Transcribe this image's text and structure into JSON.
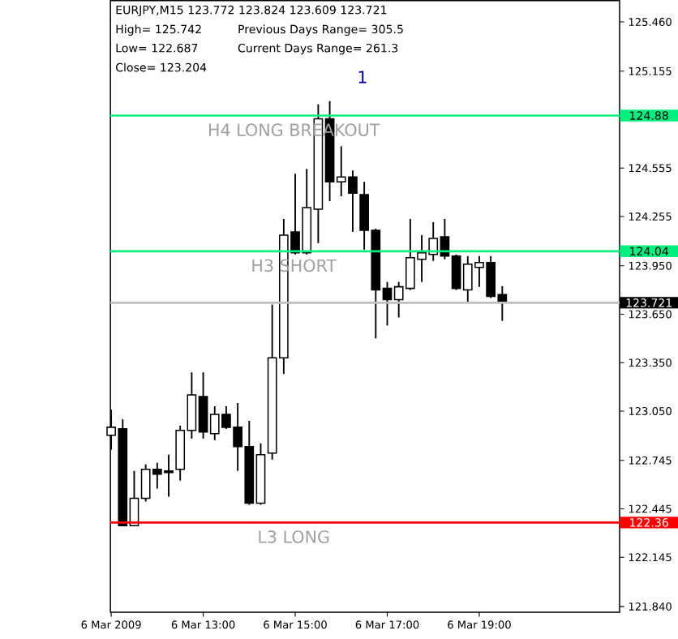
{
  "chart_data": {
    "type": "candlestick",
    "title": "EURJPY,M15  123.772 123.824 123.609 123.721",
    "annotations": [
      "High= 125.742",
      "Previous Days Range= 305.5",
      "Low= 122.687",
      "Current Days Range= 261.3",
      "Close= 123.204",
      "1",
      "124.88",
      "124.04",
      "123.721",
      "122.36"
    ],
    "x": [
      "2009-03-06T11:00",
      "2009-03-06T11:15",
      "2009-03-06T11:30",
      "2009-03-06T11:45",
      "2009-03-06T12:00",
      "2009-03-06T12:15",
      "2009-03-06T12:30",
      "2009-03-06T12:45",
      "2009-03-06T13:00",
      "2009-03-06T13:15",
      "2009-03-06T13:30",
      "2009-03-06T13:45",
      "2009-03-06T14:00",
      "2009-03-06T14:15",
      "2009-03-06T14:30",
      "2009-03-06T14:45",
      "2009-03-06T15:00",
      "2009-03-06T15:15",
      "2009-03-06T15:30",
      "2009-03-06T15:45",
      "2009-03-06T16:00",
      "2009-03-06T16:15",
      "2009-03-06T16:30",
      "2009-03-06T16:45",
      "2009-03-06T17:00",
      "2009-03-06T17:15",
      "2009-03-06T17:30",
      "2009-03-06T17:45",
      "2009-03-06T18:00",
      "2009-03-06T18:15",
      "2009-03-06T18:30",
      "2009-03-06T18:45",
      "2009-03-06T19:00",
      "2009-03-06T19:15",
      "2009-03-06T19:30"
    ],
    "ohlc": [
      [
        122.9,
        123.06,
        122.81,
        122.95
      ],
      [
        122.94,
        123.0,
        122.34,
        122.34
      ],
      [
        122.34,
        122.68,
        122.34,
        122.51
      ],
      [
        122.51,
        122.72,
        122.49,
        122.69
      ],
      [
        122.69,
        122.73,
        122.57,
        122.66
      ],
      [
        122.68,
        122.78,
        122.52,
        122.67
      ],
      [
        122.69,
        122.96,
        122.62,
        122.93
      ],
      [
        122.93,
        123.29,
        122.88,
        123.15
      ],
      [
        123.14,
        123.29,
        122.88,
        122.92
      ],
      [
        122.91,
        123.08,
        122.87,
        123.03
      ],
      [
        123.03,
        123.08,
        122.94,
        122.95
      ],
      [
        122.95,
        123.1,
        122.68,
        122.83
      ],
      [
        122.83,
        122.99,
        122.47,
        122.48
      ],
      [
        122.48,
        122.85,
        122.47,
        122.78
      ],
      [
        122.79,
        123.71,
        122.75,
        123.38
      ],
      [
        123.38,
        124.24,
        123.28,
        124.14
      ],
      [
        124.16,
        124.52,
        124.02,
        124.03
      ],
      [
        124.03,
        124.55,
        124.02,
        124.31
      ],
      [
        124.3,
        124.95,
        124.09,
        124.86
      ],
      [
        124.86,
        124.97,
        124.35,
        124.47
      ],
      [
        124.47,
        124.69,
        124.38,
        124.5
      ],
      [
        124.5,
        124.54,
        124.16,
        124.4
      ],
      [
        124.39,
        124.47,
        124.05,
        124.17
      ],
      [
        124.17,
        124.18,
        123.5,
        123.8
      ],
      [
        123.81,
        123.85,
        123.58,
        123.74
      ],
      [
        123.74,
        123.85,
        123.63,
        123.82
      ],
      [
        123.81,
        124.24,
        123.8,
        124.0
      ],
      [
        123.99,
        124.14,
        123.85,
        124.03
      ],
      [
        124.02,
        124.22,
        123.98,
        124.12
      ],
      [
        124.13,
        124.24,
        123.99,
        124.01
      ],
      [
        124.01,
        124.02,
        123.8,
        123.81
      ],
      [
        123.8,
        124.01,
        123.72,
        123.96
      ],
      [
        123.94,
        124.01,
        123.82,
        123.97
      ],
      [
        123.97,
        124.01,
        123.75,
        123.76
      ],
      [
        123.772,
        123.824,
        123.609,
        123.721
      ]
    ],
    "xlim": [
      "2009-03-06T10:59",
      "2009-03-06T22:03"
    ],
    "ylim": [
      121.805,
      125.592
    ],
    "xticks": [
      {
        "value": "2009-03-06T11:00",
        "label": "6 Mar 2009"
      },
      {
        "value": "2009-03-06T13:00",
        "label": "6 Mar 13:00"
      },
      {
        "value": "2009-03-06T15:00",
        "label": "6 Mar 15:00"
      },
      {
        "value": "2009-03-06T17:00",
        "label": "6 Mar 17:00"
      },
      {
        "value": "2009-03-06T19:00",
        "label": "6 Mar 19:00"
      }
    ],
    "yticks": [
      {
        "value": 125.46,
        "label": "125.460"
      },
      {
        "value": 125.155,
        "label": "125.155"
      },
      {
        "value": 124.555,
        "label": "124.555"
      },
      {
        "value": 124.255,
        "label": "124.255"
      },
      {
        "value": 123.95,
        "label": "123.950"
      },
      {
        "value": 123.65,
        "label": "123.650"
      },
      {
        "value": 123.35,
        "label": "123.350"
      },
      {
        "value": 123.05,
        "label": "123.050"
      },
      {
        "value": 122.745,
        "label": "122.745"
      },
      {
        "value": 122.445,
        "label": "122.445"
      },
      {
        "value": 122.145,
        "label": "122.145"
      },
      {
        "value": 121.84,
        "label": "121.840"
      }
    ],
    "ref_lines": [
      {
        "axis": "y",
        "value": 124.88,
        "label": "H4 LONG BREAKOUT",
        "color": "#00f080"
      },
      {
        "axis": "y",
        "value": 124.04,
        "label": "H3 SHORT",
        "color": "#00f080"
      },
      {
        "axis": "y",
        "value": 123.721,
        "color": "#c0c0c0"
      },
      {
        "axis": "y",
        "value": 122.36,
        "label": "L3 LONG",
        "color": "#ff0000"
      }
    ]
  }
}
